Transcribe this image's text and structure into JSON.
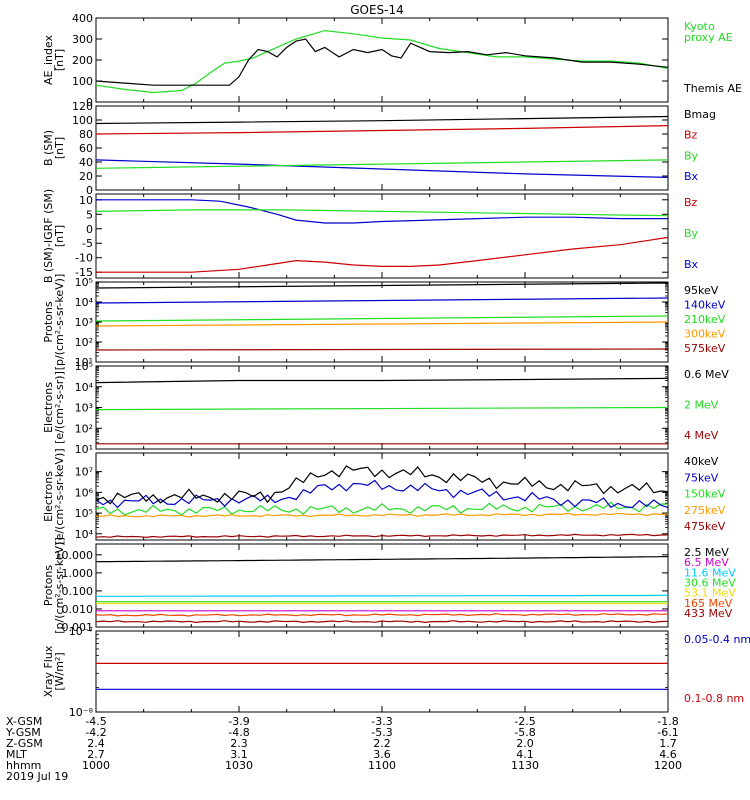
{
  "title": "GOES-14",
  "colors": {
    "black": "#000000",
    "green": "#22dd22",
    "blue": "#0000cc",
    "red": "#cc0000",
    "orange": "#ff9900",
    "cyan": "#00ccff",
    "yellow": "#eedd00",
    "magenta": "#cc00cc",
    "darkred": "#990000",
    "orangered": "#ee4400"
  },
  "chart_data": [
    {
      "type": "line",
      "ylabel": "AE_index\n[nT]",
      "ylim": [
        0,
        400
      ],
      "ticks": [
        "0",
        "100",
        "200",
        "300",
        "400"
      ],
      "series": [
        {
          "name": "Kyoto\nproxy AE",
          "color": "green",
          "x": [
            0,
            6,
            12,
            18,
            21,
            24,
            27,
            30,
            33,
            36,
            42,
            48,
            54,
            60,
            66,
            72,
            78,
            84,
            90,
            96,
            102,
            108,
            114,
            120
          ],
          "y": [
            80,
            60,
            45,
            55,
            90,
            140,
            185,
            195,
            210,
            240,
            300,
            340,
            325,
            305,
            295,
            255,
            235,
            215,
            215,
            205,
            195,
            195,
            185,
            160
          ]
        },
        {
          "name": "Themis AE",
          "color": "black",
          "x": [
            0,
            6,
            12,
            18,
            24,
            28,
            30,
            32,
            34,
            36,
            38,
            40,
            42,
            44,
            46,
            48,
            51,
            54,
            57,
            60,
            62,
            64,
            66,
            70,
            74,
            78,
            82,
            86,
            90,
            96,
            102,
            108,
            114,
            120
          ],
          "y": [
            100,
            90,
            80,
            80,
            80,
            80,
            120,
            200,
            250,
            240,
            215,
            260,
            290,
            300,
            240,
            260,
            215,
            250,
            235,
            250,
            220,
            210,
            280,
            240,
            235,
            240,
            225,
            235,
            220,
            210,
            190,
            190,
            180,
            165
          ]
        }
      ]
    },
    {
      "type": "line",
      "ylabel": "B (SM)\n[nT]",
      "ylim": [
        0,
        120
      ],
      "ticks": [
        "0",
        "20",
        "40",
        "60",
        "80",
        "100",
        "120"
      ],
      "series": [
        {
          "name": "Bx",
          "color": "blue",
          "x": [
            0,
            30,
            60,
            90,
            120
          ],
          "y": [
            43,
            37,
            30,
            23,
            18
          ]
        },
        {
          "name": "By",
          "color": "green",
          "x": [
            0,
            30,
            60,
            90,
            120
          ],
          "y": [
            31,
            34,
            37,
            40,
            43
          ]
        },
        {
          "name": "Bz",
          "color": "red",
          "x": [
            0,
            30,
            60,
            90,
            120
          ],
          "y": [
            80,
            82,
            85,
            88,
            92
          ]
        },
        {
          "name": "Bmag",
          "color": "black",
          "x": [
            0,
            30,
            60,
            90,
            120
          ],
          "y": [
            95,
            97,
            99,
            102,
            105
          ]
        }
      ]
    },
    {
      "type": "line",
      "ylabel": "B (SM)-IGRF (SM)\n[nT]",
      "ylim": [
        -17,
        12
      ],
      "ticks": [
        "-15",
        "-10",
        "-5",
        "0",
        "5",
        "10"
      ],
      "series": [
        {
          "name": "Bx",
          "color": "blue",
          "x": [
            0,
            10,
            20,
            26,
            32,
            38,
            42,
            48,
            54,
            60,
            70,
            80,
            90,
            100,
            110,
            120
          ],
          "y": [
            10,
            10,
            10,
            9.5,
            7.5,
            5,
            3,
            2,
            2,
            2.5,
            3,
            3.5,
            4,
            4,
            3.5,
            3.5
          ]
        },
        {
          "name": "By",
          "color": "green",
          "x": [
            0,
            20,
            40,
            60,
            80,
            100,
            120
          ],
          "y": [
            6,
            6.5,
            6.5,
            6,
            5.5,
            5,
            4.5
          ]
        },
        {
          "name": "Bz",
          "color": "red",
          "x": [
            0,
            20,
            30,
            36,
            42,
            48,
            54,
            60,
            66,
            72,
            80,
            90,
            100,
            110,
            120
          ],
          "y": [
            -15,
            -15,
            -14,
            -12.5,
            -11,
            -11.5,
            -12.5,
            -13,
            -13,
            -12.5,
            -11,
            -9,
            -7,
            -5.5,
            -3
          ]
        }
      ]
    },
    {
      "type": "line",
      "ylabel": "Protons\n[p/(cm²-s-sr-keV)]",
      "yscale": "log",
      "ylim": [
        1,
        5
      ],
      "tick_labels": [
        "10¹",
        "10²",
        "10³",
        "10⁴",
        "10⁵"
      ],
      "series": [
        {
          "name": "575keV",
          "color": "darkred",
          "x": [
            0,
            120
          ],
          "y": [
            1.6,
            1.65
          ]
        },
        {
          "name": "300keV",
          "color": "orange",
          "x": [
            0,
            120
          ],
          "y": [
            2.8,
            3.0
          ]
        },
        {
          "name": "210keV",
          "color": "green",
          "x": [
            0,
            120
          ],
          "y": [
            3.05,
            3.3
          ]
        },
        {
          "name": "140keV",
          "color": "blue",
          "x": [
            0,
            120
          ],
          "y": [
            3.95,
            4.2
          ]
        },
        {
          "name": "95keV",
          "color": "black",
          "x": [
            0,
            120
          ],
          "y": [
            4.7,
            4.95
          ]
        }
      ]
    },
    {
      "type": "line",
      "ylabel": "Electrons\n[e/(cm²-s-sr)]",
      "yscale": "log",
      "ylim": [
        1,
        5
      ],
      "tick_labels": [
        "10¹",
        "10²",
        "10³",
        "10⁴",
        "10⁵"
      ],
      "series": [
        {
          "name": "4 MeV",
          "color": "darkred",
          "x": [
            0,
            120
          ],
          "y": [
            1.25,
            1.25
          ]
        },
        {
          "name": "2 MeV",
          "color": "green",
          "x": [
            0,
            120
          ],
          "y": [
            2.9,
            3.0
          ]
        },
        {
          "name": "0.6 MeV",
          "color": "black",
          "x": [
            0,
            30,
            60,
            90,
            120
          ],
          "y": [
            4.2,
            4.3,
            4.3,
            4.35,
            4.4
          ]
        }
      ]
    },
    {
      "type": "line",
      "ylabel": "Electrons\n[e/(cm²-s-sr-keV)]",
      "yscale": "log",
      "ylim": [
        3.7,
        7.9
      ],
      "tick_labels": [
        "10⁴",
        "10⁵",
        "10⁶",
        "10⁷"
      ],
      "series": [
        {
          "name": "475keV",
          "color": "darkred",
          "x": [
            0,
            120
          ],
          "y": [
            3.85,
            3.95
          ]
        },
        {
          "name": "275keV",
          "color": "orange",
          "x": [
            0,
            120
          ],
          "y": [
            4.85,
            4.95
          ]
        },
        {
          "name": "150keV",
          "color": "green",
          "x": [
            0,
            120
          ],
          "y": [
            5.1,
            5.3
          ]
        },
        {
          "name": "75keV",
          "color": "blue",
          "x": [
            0,
            20,
            36,
            44,
            48,
            54,
            60,
            70,
            80,
            90,
            100,
            110,
            120
          ],
          "y": [
            5.55,
            5.6,
            5.65,
            5.9,
            6.3,
            6.35,
            6.3,
            6.15,
            5.95,
            5.75,
            5.55,
            5.45,
            5.35
          ]
        },
        {
          "name": "40keV",
          "color": "black",
          "x": [
            0,
            20,
            36,
            42,
            48,
            54,
            60,
            70,
            80,
            90,
            100,
            110,
            120
          ],
          "y": [
            5.75,
            5.8,
            5.85,
            6.4,
            7.0,
            7.05,
            7.0,
            6.85,
            6.6,
            6.4,
            6.3,
            6.2,
            6.1
          ]
        }
      ]
    },
    {
      "type": "line",
      "ylabel": "Protons\n[p/(cm²-s-sr-keV)]",
      "yscale": "log",
      "ylim": [
        -3,
        1.6
      ],
      "tick_labels": [
        "0.001",
        "0.010",
        "0.100",
        "1.000",
        "10.000"
      ],
      "series": [
        {
          "name": "433 MeV",
          "color": "darkred",
          "x": [
            0,
            120
          ],
          "y": [
            -2.7,
            -2.7
          ]
        },
        {
          "name": "165 MeV",
          "color": "orangered",
          "x": [
            0,
            120
          ],
          "y": [
            -2.35,
            -2.3
          ]
        },
        {
          "name": "53.1 MeV",
          "color": "yellow",
          "x": [
            0,
            120
          ],
          "y": [
            -1.7,
            -1.7
          ]
        },
        {
          "name": "30.6 MeV",
          "color": "green",
          "x": [
            0,
            120
          ],
          "y": [
            -1.6,
            -1.6
          ]
        },
        {
          "name": "11.6 MeV",
          "color": "cyan",
          "x": [
            0,
            120
          ],
          "y": [
            -1.3,
            -1.25
          ]
        },
        {
          "name": "6.5 MeV",
          "color": "magenta",
          "x": [
            0,
            120
          ],
          "y": [
            -2.1,
            -2.1
          ]
        },
        {
          "name": "2.5 MeV",
          "color": "black",
          "x": [
            0,
            30,
            60,
            90,
            120
          ],
          "y": [
            0.62,
            0.68,
            0.75,
            0.82,
            0.9
          ]
        }
      ]
    },
    {
      "type": "line",
      "ylabel": "Xray Flux\n[W/m²]",
      "yscale": "log",
      "ylim": [
        -8,
        -7
      ],
      "tick_labels": [
        "10⁻⁸",
        "10⁻⁷"
      ],
      "series": [
        {
          "name": "0.1-0.8 nm",
          "color": "red",
          "x": [
            0,
            120
          ],
          "y": [
            -7.4,
            -7.4
          ]
        },
        {
          "name": "0.05-0.4 nm",
          "color": "blue",
          "x": [
            0,
            120
          ],
          "y": [
            -7.72,
            -7.72
          ]
        }
      ]
    }
  ],
  "xaxis": {
    "ticks": [
      0,
      30,
      60,
      90,
      120
    ],
    "rows": [
      {
        "label": "X-GSM",
        "values": [
          "-4.5",
          "-3.9",
          "-3.3",
          "-2.5",
          "-1.8"
        ]
      },
      {
        "label": "Y-GSM",
        "values": [
          "-4.2",
          "-4.8",
          "-5.3",
          "-5.8",
          "-6.1"
        ]
      },
      {
        "label": "Z-GSM",
        "values": [
          "2.4",
          "2.3",
          "2.2",
          "2.0",
          "1.7"
        ]
      },
      {
        "label": "MLT",
        "values": [
          "2.7",
          "3.1",
          "3.6",
          "4.1",
          "4.6"
        ]
      },
      {
        "label": "hhmm",
        "values": [
          "1000",
          "1030",
          "1100",
          "1130",
          "1200"
        ]
      }
    ],
    "date": "2019 Jul 19"
  }
}
